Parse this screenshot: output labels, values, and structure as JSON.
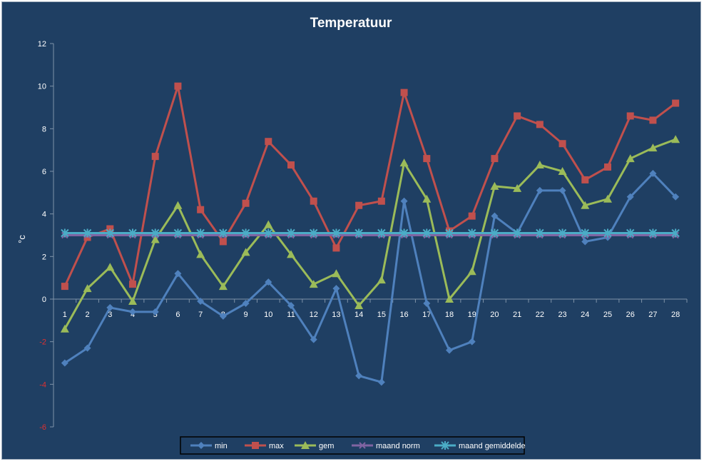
{
  "chart_data": {
    "type": "line",
    "title": "Temperatuur",
    "ylabel": "°c",
    "xlabel": "",
    "ylim": [
      -6,
      12
    ],
    "ystep": 2,
    "grid": false,
    "legend_position": "bottom",
    "categories": [
      "1",
      "2",
      "3",
      "4",
      "5",
      "6",
      "7",
      "8",
      "9",
      "10",
      "11",
      "12",
      "13",
      "14",
      "15",
      "16",
      "17",
      "18",
      "19",
      "20",
      "21",
      "22",
      "23",
      "24",
      "25",
      "26",
      "27",
      "28"
    ],
    "series": [
      {
        "name": "min",
        "color": "#4f81bd",
        "marker": "diamond",
        "values": [
          -3.0,
          -2.3,
          -0.4,
          -0.6,
          -0.6,
          1.2,
          -0.1,
          -0.8,
          -0.2,
          0.8,
          -0.3,
          -1.9,
          0.5,
          -3.6,
          -3.9,
          4.6,
          -0.2,
          -2.4,
          -2.0,
          3.9,
          3.1,
          5.1,
          5.1,
          2.7,
          2.9,
          4.8,
          5.9,
          4.8
        ]
      },
      {
        "name": "max",
        "color": "#c0504d",
        "marker": "square",
        "values": [
          0.6,
          2.9,
          3.3,
          0.7,
          6.7,
          10.0,
          4.2,
          2.7,
          4.5,
          7.4,
          6.3,
          4.6,
          2.4,
          4.4,
          4.6,
          9.7,
          6.6,
          3.2,
          3.9,
          6.6,
          8.6,
          8.2,
          7.3,
          5.6,
          6.2,
          8.6,
          8.4,
          9.2
        ]
      },
      {
        "name": "gem",
        "color": "#9bbb59",
        "marker": "triangle",
        "values": [
          -1.4,
          0.5,
          1.5,
          -0.1,
          2.8,
          4.4,
          2.1,
          0.6,
          2.2,
          3.5,
          2.1,
          0.7,
          1.2,
          -0.3,
          0.9,
          6.4,
          4.7,
          0.0,
          1.3,
          5.3,
          5.2,
          6.3,
          6.0,
          4.4,
          4.7,
          6.6,
          7.1,
          7.5
        ]
      },
      {
        "name": "maand norm",
        "color": "#8064a2",
        "marker": "x",
        "values": [
          3.0,
          3.0,
          3.0,
          3.0,
          3.0,
          3.0,
          3.0,
          3.0,
          3.0,
          3.0,
          3.0,
          3.0,
          3.0,
          3.0,
          3.0,
          3.0,
          3.0,
          3.0,
          3.0,
          3.0,
          3.0,
          3.0,
          3.0,
          3.0,
          3.0,
          3.0,
          3.0,
          3.0
        ]
      },
      {
        "name": "maand gemiddelde",
        "color": "#4bacc6",
        "marker": "star",
        "values": [
          3.1,
          3.1,
          3.1,
          3.1,
          3.1,
          3.1,
          3.1,
          3.1,
          3.1,
          3.1,
          3.1,
          3.1,
          3.1,
          3.1,
          3.1,
          3.1,
          3.1,
          3.1,
          3.1,
          3.1,
          3.1,
          3.1,
          3.1,
          3.1,
          3.1,
          3.1,
          3.1,
          3.1
        ]
      }
    ]
  }
}
